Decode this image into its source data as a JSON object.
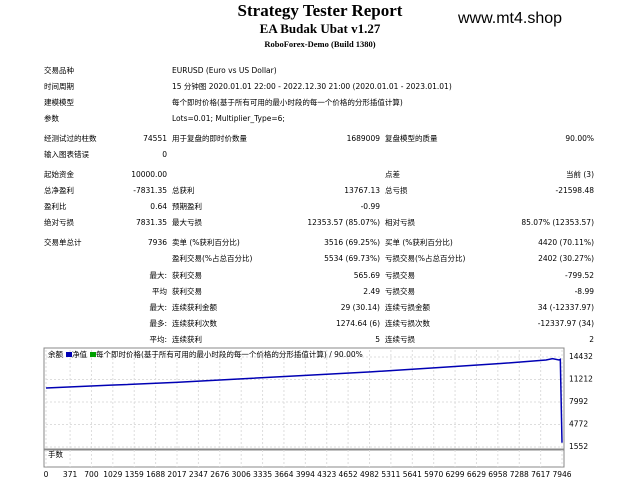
{
  "header": {
    "title": "Strategy Tester Report",
    "subtitle": "EA Budak Ubat v1.27",
    "server": "RoboForex-Demo (Build 1380)",
    "watermark": "www.mt4.shop"
  },
  "report": {
    "rows": [
      {
        "label": "交易品种",
        "text": "EURUSD (Euro vs US Dollar)"
      },
      {
        "label": "时间周期",
        "text": "15 分钟图 2020.01.01 22:00 - 2022.12.30 21:00 (2020.01.01 - 2023.01.01)"
      },
      {
        "label": "建模模型",
        "text": "每个即时价格(基于所有可用的最小时段的每一个价格的分形插值计算)"
      },
      {
        "label": "参数",
        "text": "Lots=0.01; Multiplier_Type=6;"
      },
      {
        "label": "经测试过的柱数",
        "value": "74551",
        "label2": "用于复盘的即时价数量",
        "value2": "1689009",
        "label3": "复盘模型的质量",
        "value3": "90.00%"
      },
      {
        "label": "输入图表错误",
        "value": "0"
      },
      {
        "label": "起始资金",
        "value": "10000.00",
        "label3": "点差",
        "value3": "当前 (3)"
      },
      {
        "label": "总净盈利",
        "value": "-7831.35",
        "label2": "总获利",
        "value2": "13767.13",
        "label3": "总亏损",
        "value3": "-21598.48"
      },
      {
        "label": "盈利比",
        "value": "0.64",
        "label2": "预期盈利",
        "value2": "-0.99"
      },
      {
        "label": "绝对亏损",
        "value": "7831.35",
        "label2": "最大亏损",
        "value2": "12353.57 (85.07%)",
        "label3": "相对亏损",
        "value3": "85.07% (12353.57)"
      },
      {
        "label": "交易单总计",
        "value": "7936",
        "label2": "卖单 (%获利百分比)",
        "value2": "3516 (69.25%)",
        "label3": "买单 (%获利百分比)",
        "value3": "4420 (70.11%)"
      },
      {
        "label2": "盈利交易(%占总百分比)",
        "value2": "5534 (69.73%)",
        "label3": "亏损交易(%占总百分比)",
        "value3": "2402 (30.27%)"
      },
      {
        "prefix": "最大:",
        "label2": "获利交易",
        "value2": "565.69",
        "label3": "亏损交易",
        "value3": "-799.52"
      },
      {
        "prefix": "平均",
        "label2": "获利交易",
        "value2": "2.49",
        "label3": "亏损交易",
        "value3": "-8.99"
      },
      {
        "prefix": "最大:",
        "label2": "连续获利金额",
        "value2": "29 (30.14)",
        "label3": "连续亏损金额",
        "value3": "34 (-12337.97)"
      },
      {
        "prefix": "最多:",
        "label2": "连续获利次数",
        "value2": "1274.64 (6)",
        "label3": "连续亏损次数",
        "value3": "-12337.97 (34)"
      },
      {
        "prefix": "平均:",
        "label2": "连续获利",
        "value2": "5",
        "label3": "连续亏损",
        "value3": "2"
      }
    ]
  },
  "chart_data": {
    "type": "line",
    "legend": [
      "余额",
      "净值",
      "每个即时价格(基于所有可用的最小时段的每一个价格的分形插值计算) / 90.00%"
    ],
    "volume_label": "手数",
    "x": [
      0,
      1000,
      2000,
      3000,
      4000,
      5000,
      6000,
      7000,
      7700,
      7800,
      7900,
      7920,
      7946
    ],
    "series": [
      {
        "name": "余额",
        "color": "#0000b4",
        "values": [
          10000,
          10400,
          10800,
          11300,
          11800,
          12300,
          12900,
          13500,
          14000,
          14200,
          14000,
          14100,
          2168
        ]
      }
    ],
    "xlim": [
      0,
      7946
    ],
    "ylim": [
      1552,
      14432
    ],
    "xticks": [
      0,
      371,
      700,
      1029,
      1359,
      1688,
      2017,
      2347,
      2676,
      3006,
      3335,
      3664,
      3994,
      4323,
      4652,
      4982,
      5311,
      5641,
      5970,
      6299,
      6629,
      6958,
      7288,
      7617,
      7946
    ],
    "yticks": [
      14432,
      11212,
      7992,
      4772,
      1552
    ]
  }
}
